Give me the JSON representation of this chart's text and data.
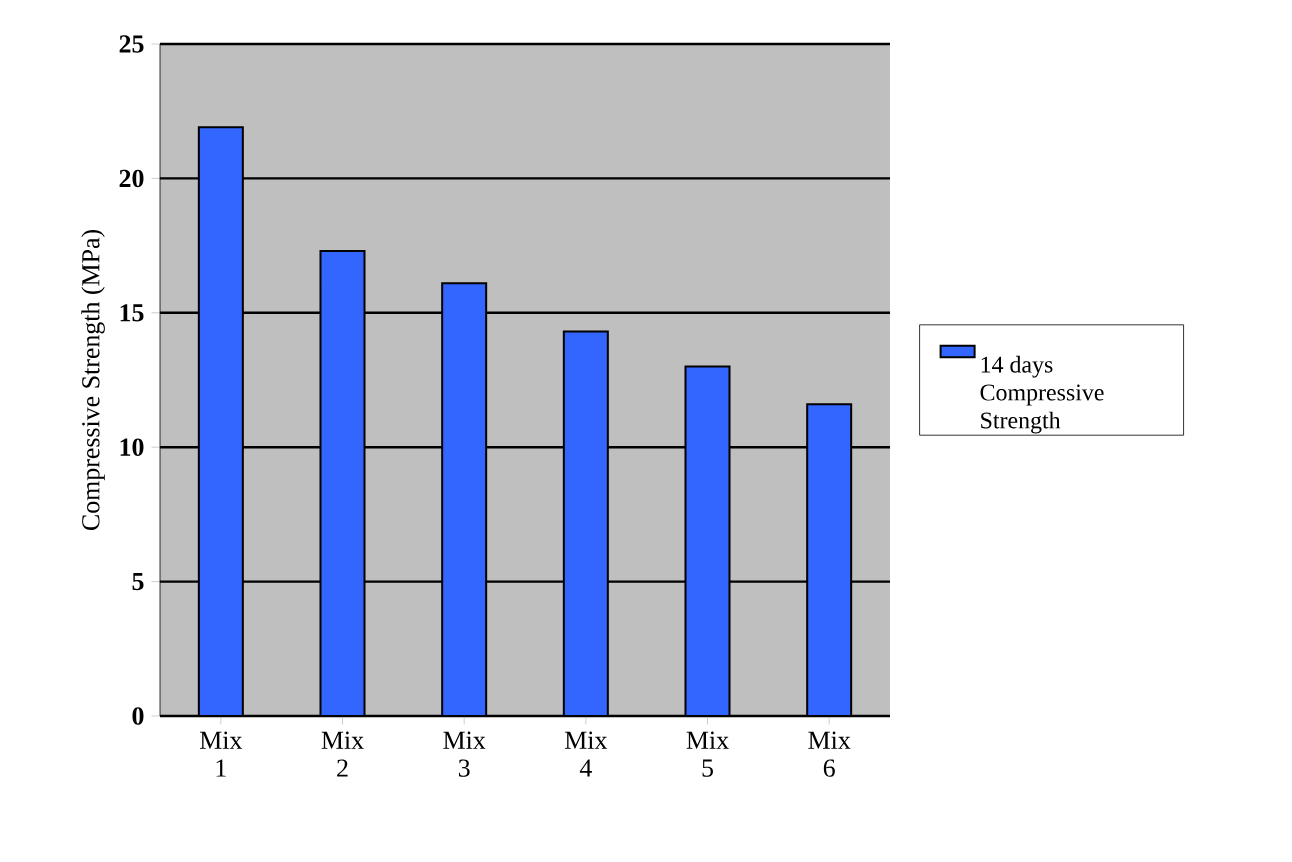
{
  "chart_data": {
    "type": "bar",
    "ylabel": "Compressive Strength (MPa)",
    "categories": [
      "Mix 1",
      "Mix 2",
      "Mix 3",
      "Mix 4",
      "Mix 5",
      "Mix 6"
    ],
    "series": [
      {
        "name": "14 days Compressive Strength",
        "color": "#3366ff",
        "values": [
          21.9,
          17.3,
          16.1,
          14.3,
          13.0,
          11.6
        ]
      }
    ],
    "ylim": [
      0,
      25
    ],
    "yticks": [
      0,
      5,
      10,
      15,
      20,
      25
    ],
    "grid": "y",
    "legend": "right"
  }
}
